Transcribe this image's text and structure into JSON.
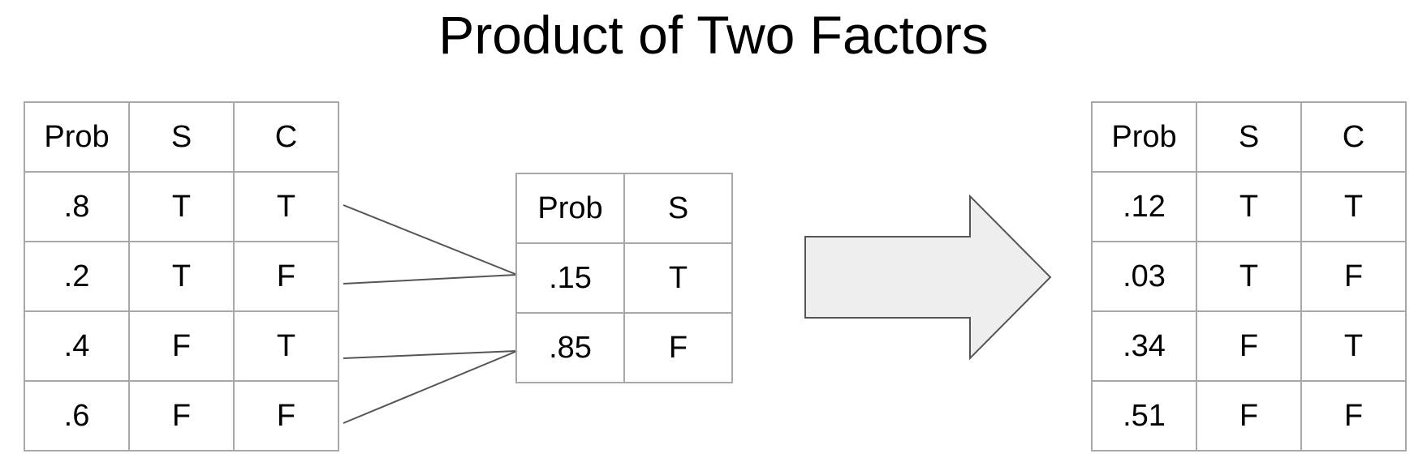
{
  "title": "Product of Two Factors",
  "factor_cs": {
    "headers": [
      "Prob",
      "S",
      "C"
    ],
    "rows": [
      [
        ".8",
        "T",
        "T"
      ],
      [
        ".2",
        "T",
        "F"
      ],
      [
        ".4",
        "F",
        "T"
      ],
      [
        ".6",
        "F",
        "F"
      ]
    ]
  },
  "factor_s": {
    "headers": [
      "Prob",
      "S"
    ],
    "rows": [
      [
        ".15",
        "T"
      ],
      [
        ".85",
        "F"
      ]
    ]
  },
  "product": {
    "headers": [
      "Prob",
      "S",
      "C"
    ],
    "rows": [
      [
        ".12",
        "T",
        "T"
      ],
      [
        ".03",
        "T",
        "F"
      ],
      [
        ".34",
        "F",
        "T"
      ],
      [
        ".51",
        "F",
        "F"
      ]
    ]
  },
  "colors": {
    "border": "#a8a8a8",
    "connector": "#555555",
    "arrow_fill": "#eeeeee",
    "arrow_stroke": "#555555"
  }
}
